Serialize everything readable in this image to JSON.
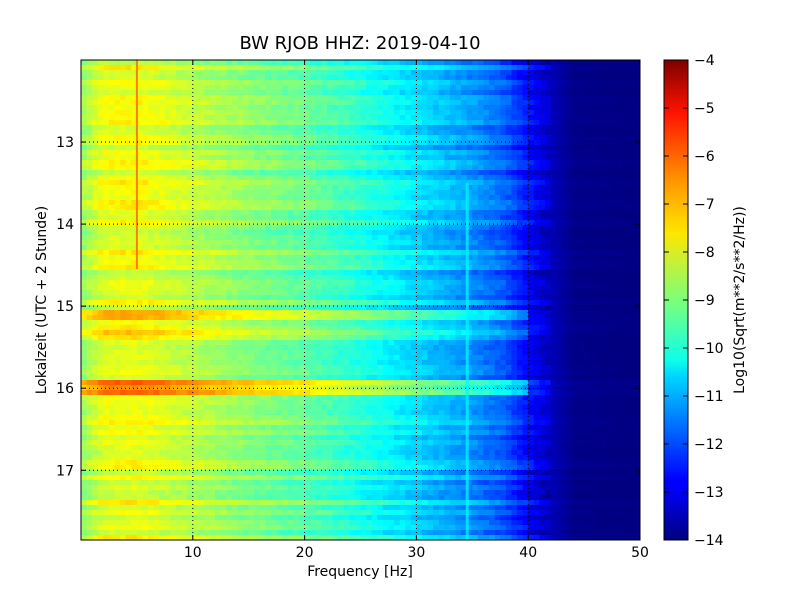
{
  "chart_data": {
    "type": "heatmap",
    "title": "BW RJOB HHZ: 2019-04-10",
    "xlabel": "Frequency [Hz]",
    "ylabel": "Lokalzeit (UTC + 2 Stunde)",
    "xlim": [
      0,
      50
    ],
    "ylim": [
      17.85,
      12.0
    ],
    "y_axis_inverted": true,
    "x_ticks": [
      10,
      20,
      30,
      40,
      50
    ],
    "y_ticks": [
      13,
      14,
      15,
      16,
      17
    ],
    "grid": true,
    "grid_style": "dotted",
    "colormap": "jet",
    "colorbar": {
      "label": "Log10(Sqrt(m**2/s**2/Hz))",
      "range": [
        -14,
        -4
      ],
      "ticks": [
        -4,
        -5,
        -6,
        -7,
        -8,
        -9,
        -10,
        -11,
        -12,
        -13,
        -14
      ]
    },
    "spectral_profile": {
      "frequency_hz": [
        0,
        2,
        5,
        10,
        15,
        20,
        25,
        30,
        35,
        38,
        40,
        42,
        44,
        50
      ],
      "level": [
        -8.8,
        -8.0,
        -7.9,
        -8.4,
        -8.9,
        -9.3,
        -9.9,
        -10.6,
        -11.3,
        -11.9,
        -12.7,
        -13.4,
        -13.9,
        -14.0
      ]
    },
    "features": [
      {
        "kind": "narrowband_line",
        "frequency_hz": 5.0,
        "time_range": [
          12.0,
          14.55
        ],
        "level": -6.5
      },
      {
        "kind": "transient",
        "time": 15.1,
        "level_shift": 1.2
      },
      {
        "kind": "transient",
        "time": 15.35,
        "level_shift": 0.8
      },
      {
        "kind": "transient",
        "time": 16.0,
        "level_shift": 1.4
      },
      {
        "kind": "drifting_line",
        "frequency_hz": 34.5,
        "time_range": [
          13.5,
          17.85
        ],
        "level": -10.3
      }
    ]
  }
}
